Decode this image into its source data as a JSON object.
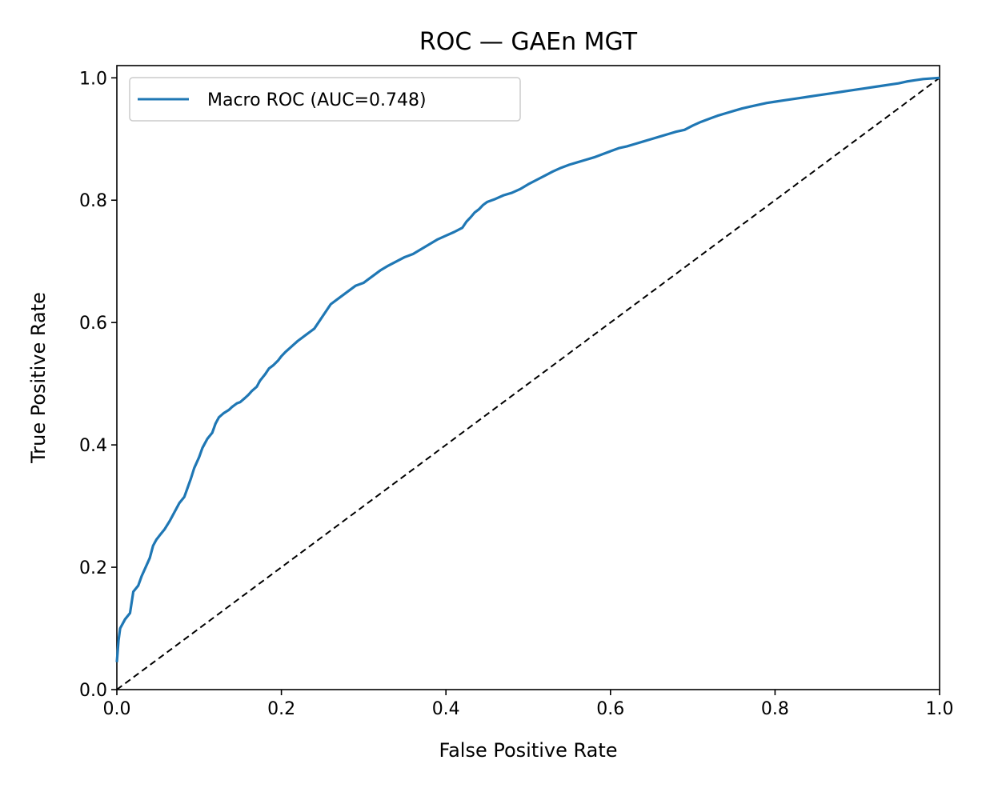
{
  "chart_data": {
    "type": "line",
    "title": "ROC — GAEn MGT",
    "xlabel": "False Positive Rate",
    "ylabel": "True Positive Rate",
    "xlim": [
      0.0,
      1.0
    ],
    "ylim": [
      0.0,
      1.02
    ],
    "xticks": [
      "0.0",
      "0.2",
      "0.4",
      "0.6",
      "0.8",
      "1.0"
    ],
    "yticks": [
      "0.0",
      "0.2",
      "0.4",
      "0.6",
      "0.8",
      "1.0"
    ],
    "grid": false,
    "legend_position": "upper-left",
    "series": [
      {
        "name": "Macro ROC (AUC=0.748)",
        "color": "#1f77b4",
        "style": "solid",
        "x": [
          0.0,
          0.002,
          0.004,
          0.01,
          0.016,
          0.02,
          0.026,
          0.03,
          0.035,
          0.04,
          0.044,
          0.048,
          0.052,
          0.058,
          0.064,
          0.07,
          0.076,
          0.082,
          0.086,
          0.09,
          0.094,
          0.1,
          0.104,
          0.11,
          0.116,
          0.12,
          0.124,
          0.13,
          0.136,
          0.14,
          0.146,
          0.15,
          0.156,
          0.16,
          0.164,
          0.17,
          0.174,
          0.18,
          0.185,
          0.19,
          0.196,
          0.2,
          0.205,
          0.21,
          0.215,
          0.22,
          0.225,
          0.23,
          0.235,
          0.24,
          0.245,
          0.25,
          0.255,
          0.26,
          0.27,
          0.28,
          0.29,
          0.3,
          0.31,
          0.32,
          0.33,
          0.34,
          0.35,
          0.36,
          0.37,
          0.38,
          0.39,
          0.4,
          0.41,
          0.42,
          0.425,
          0.43,
          0.435,
          0.44,
          0.445,
          0.45,
          0.46,
          0.47,
          0.48,
          0.49,
          0.5,
          0.51,
          0.52,
          0.53,
          0.54,
          0.55,
          0.56,
          0.57,
          0.58,
          0.59,
          0.6,
          0.61,
          0.62,
          0.63,
          0.64,
          0.65,
          0.66,
          0.67,
          0.68,
          0.69,
          0.7,
          0.71,
          0.72,
          0.73,
          0.74,
          0.75,
          0.76,
          0.77,
          0.78,
          0.79,
          0.8,
          0.81,
          0.82,
          0.83,
          0.84,
          0.85,
          0.86,
          0.87,
          0.88,
          0.89,
          0.9,
          0.91,
          0.92,
          0.93,
          0.94,
          0.95,
          0.96,
          0.97,
          0.98,
          0.99,
          1.0
        ],
        "y": [
          0.045,
          0.08,
          0.1,
          0.115,
          0.125,
          0.16,
          0.17,
          0.185,
          0.2,
          0.215,
          0.235,
          0.245,
          0.252,
          0.262,
          0.275,
          0.29,
          0.305,
          0.315,
          0.33,
          0.345,
          0.362,
          0.38,
          0.395,
          0.41,
          0.42,
          0.435,
          0.445,
          0.452,
          0.457,
          0.462,
          0.468,
          0.47,
          0.477,
          0.482,
          0.488,
          0.495,
          0.505,
          0.515,
          0.525,
          0.53,
          0.538,
          0.545,
          0.552,
          0.558,
          0.564,
          0.57,
          0.575,
          0.58,
          0.585,
          0.59,
          0.6,
          0.61,
          0.62,
          0.63,
          0.64,
          0.65,
          0.66,
          0.665,
          0.675,
          0.685,
          0.693,
          0.7,
          0.707,
          0.712,
          0.72,
          0.728,
          0.736,
          0.742,
          0.748,
          0.755,
          0.765,
          0.772,
          0.78,
          0.785,
          0.792,
          0.797,
          0.802,
          0.808,
          0.812,
          0.818,
          0.826,
          0.833,
          0.84,
          0.847,
          0.853,
          0.858,
          0.862,
          0.866,
          0.87,
          0.875,
          0.88,
          0.885,
          0.888,
          0.892,
          0.896,
          0.9,
          0.904,
          0.908,
          0.912,
          0.915,
          0.922,
          0.928,
          0.933,
          0.938,
          0.942,
          0.946,
          0.95,
          0.953,
          0.956,
          0.959,
          0.961,
          0.963,
          0.965,
          0.967,
          0.969,
          0.971,
          0.973,
          0.975,
          0.977,
          0.979,
          0.981,
          0.983,
          0.985,
          0.987,
          0.989,
          0.991,
          0.994,
          0.996,
          0.998,
          0.999,
          1.0
        ]
      },
      {
        "name": "",
        "color": "#000000",
        "style": "dashed",
        "x": [
          0.0,
          1.0
        ],
        "y": [
          0.0,
          1.0
        ]
      }
    ]
  }
}
